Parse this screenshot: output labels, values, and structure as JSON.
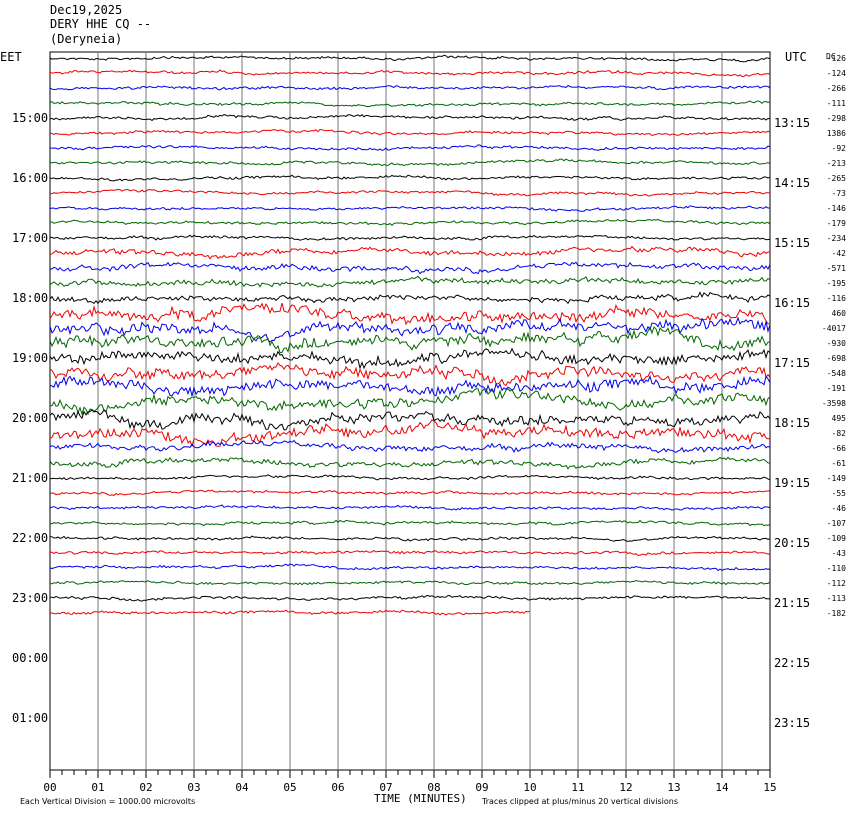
{
  "header": {
    "date": "Dec19,2025",
    "station": "DERY HHE CQ --",
    "location": "(Deryneia)"
  },
  "chart_data": {
    "type": "line",
    "left_timezone": "EET",
    "right_timezone": "UTC",
    "dc_label": "DC",
    "left_time_labels": [
      "15:00",
      "16:00",
      "17:00",
      "18:00",
      "19:00",
      "20:00",
      "21:00",
      "22:00",
      "23:00",
      "00:00",
      "01:00"
    ],
    "right_time_labels": [
      "13:15",
      "14:15",
      "15:15",
      "16:15",
      "17:15",
      "18:15",
      "19:15",
      "20:15",
      "21:15",
      "22:15",
      "23:15"
    ],
    "x_tick_labels": [
      "00",
      "01",
      "02",
      "03",
      "04",
      "05",
      "06",
      "07",
      "08",
      "09",
      "10",
      "11",
      "12",
      "13",
      "14",
      "15"
    ],
    "xlabel": "TIME (MINUTES)",
    "xlim": [
      0,
      15
    ],
    "scale_note": "Each Vertical Division = 1000.00 microvolts",
    "clip_note": "Traces clipped at plus/minus 20 vertical divisions",
    "trace_colors": [
      "#000000",
      "#ee0000",
      "#0000ee",
      "#006600"
    ],
    "dc_offsets": [
      "-126",
      "-124",
      "-266",
      "-111",
      "-298",
      "1386",
      "-92",
      "-213",
      "-265",
      "-73",
      "-146",
      "-179",
      "-234",
      "-42",
      "-571",
      "-195",
      "-116",
      "460",
      "-4017",
      "-930",
      "-698",
      "-548",
      "-191",
      "-3598",
      "495",
      "-82",
      "-66",
      "-61",
      "-149",
      "-55",
      "-46",
      "-107",
      "-109",
      "-43",
      "-110",
      "-112",
      "-113",
      "-182"
    ]
  }
}
